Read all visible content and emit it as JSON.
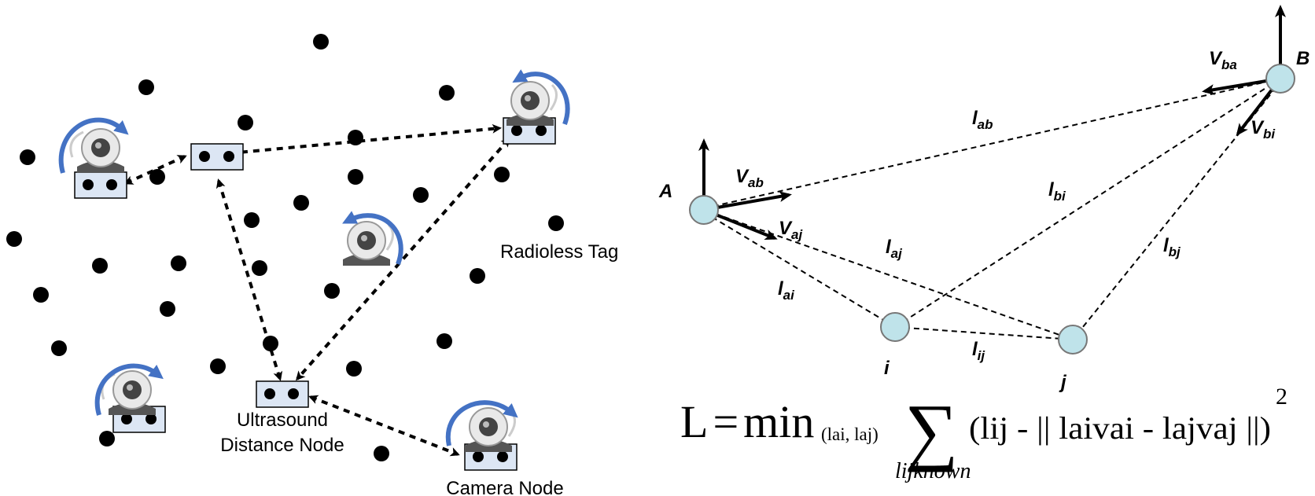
{
  "left_panel": {
    "radioless_tag_label": "Radioless Tag",
    "ultrasound_label_line1": "Ultrasound",
    "ultrasound_label_line2": "Distance Node",
    "camera_node_label": "Camera Node"
  },
  "right_panel": {
    "node_a": "A",
    "node_b": "B",
    "node_i": "i",
    "node_j": "j",
    "v_ab": {
      "base": "V",
      "sub": "ab"
    },
    "v_aj": {
      "base": "V",
      "sub": "aj"
    },
    "v_ba": {
      "base": "V",
      "sub": "ba"
    },
    "v_bi": {
      "base": "V",
      "sub": "bi"
    },
    "l_ab": {
      "base": "l",
      "sub": "ab"
    },
    "l_bi": {
      "base": "l",
      "sub": "bi"
    },
    "l_aj": {
      "base": "l",
      "sub": "aj"
    },
    "l_bj": {
      "base": "l",
      "sub": "bj"
    },
    "l_ai": {
      "base": "l",
      "sub": "ai"
    },
    "l_ij": {
      "base": "l",
      "sub": "ij"
    },
    "node_fill_color": "#bfe3ea"
  },
  "formula": {
    "lhs": "L",
    "equals": "=",
    "min": "min",
    "min_args": "(lai, laj)",
    "sum_symbol": "∑",
    "body": "(lij - || laivai - lajvaj ||)",
    "exponent": "2",
    "under_sum": "lijknown"
  },
  "colors": {
    "rotation_arrow": "#4472c4",
    "node_box_fill": "#dce6f4",
    "ink": "#000000"
  }
}
